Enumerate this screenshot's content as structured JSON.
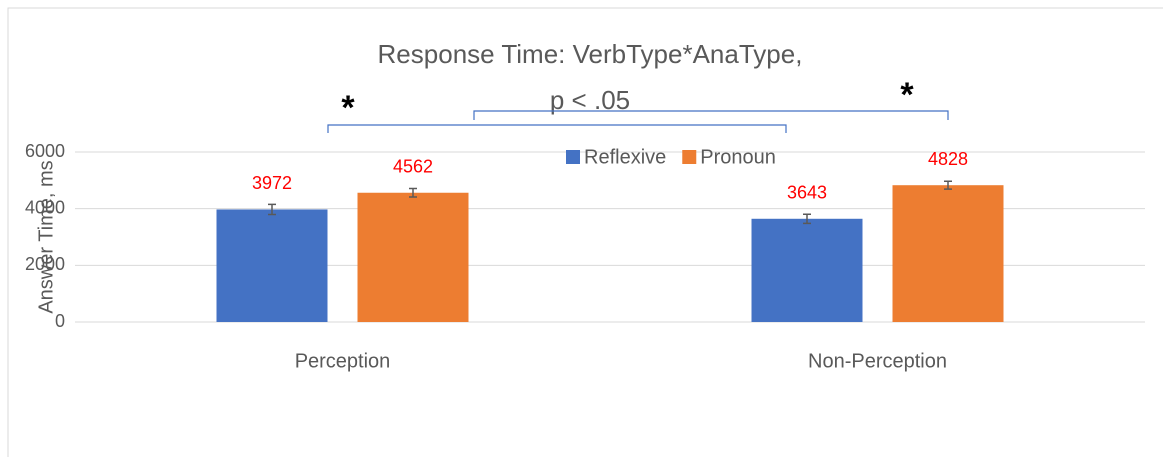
{
  "chart_data": {
    "type": "bar",
    "title_lines": [
      "Response Time: VerbType*AnaType,",
      "p < .05"
    ],
    "y_label": "Answer Time, ms",
    "categories": [
      "Perception",
      "Non-Perception"
    ],
    "series": [
      {
        "name": "Reflexive",
        "color": "#4472c4",
        "values": [
          3972,
          3643
        ],
        "errors": [
          180,
          160
        ]
      },
      {
        "name": "Pronoun",
        "color": "#ed7d31",
        "values": [
          4562,
          4828
        ],
        "errors": [
          150,
          140
        ]
      }
    ],
    "value_label_color": "#ff0000",
    "ylim": [
      0,
      6000
    ],
    "yticks": [
      0,
      2000,
      4000,
      6000
    ],
    "grid": true,
    "legend": "top",
    "annotations": [
      "*",
      "*"
    ]
  }
}
